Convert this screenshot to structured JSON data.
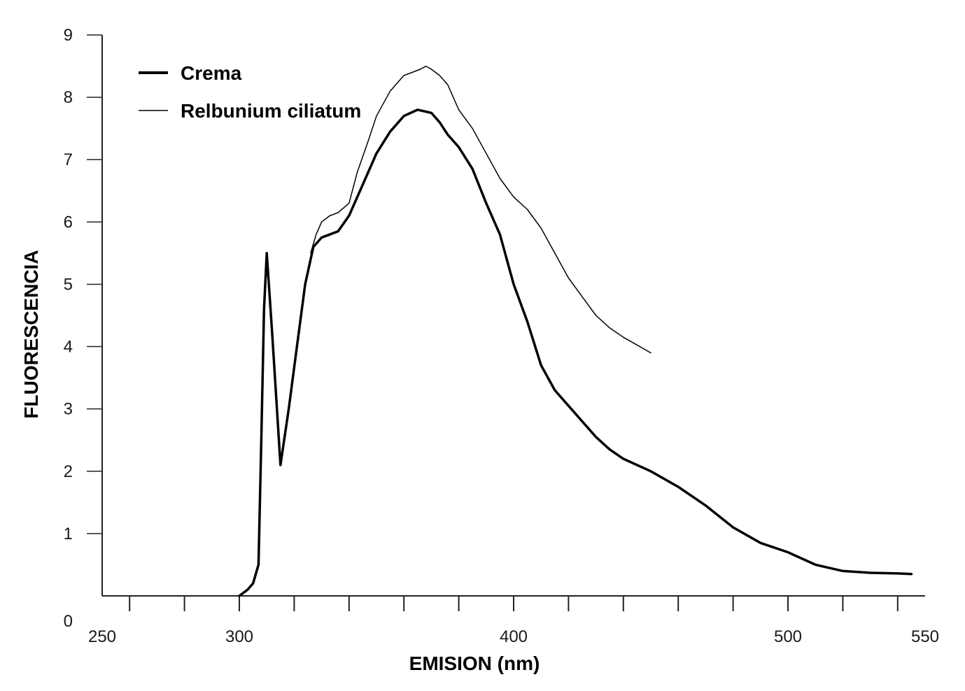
{
  "chart_data": {
    "type": "line",
    "title": "",
    "xlabel": "EMISION (nm)",
    "ylabel": "FLUORESCENCIA",
    "xlim": [
      250,
      550
    ],
    "ylim": [
      0,
      9
    ],
    "x_tick_labels": [
      "250",
      "300",
      "400",
      "500",
      "550"
    ],
    "x_tick_values": [
      250,
      300,
      400,
      500,
      550
    ],
    "x_minor_ticks": [
      260,
      280,
      300,
      320,
      340,
      360,
      380,
      400,
      420,
      440,
      460,
      480,
      500,
      520,
      540
    ],
    "y_tick_labels": [
      "0",
      "1",
      "2",
      "3",
      "4",
      "5",
      "6",
      "7",
      "8",
      "9"
    ],
    "y_tick_values": [
      0,
      1,
      2,
      3,
      4,
      5,
      6,
      7,
      8,
      9
    ],
    "grid": false,
    "legend_position": "top-left",
    "series": [
      {
        "name": "Crema",
        "color": "#000000",
        "style": "thick",
        "x": [
          300,
          303,
          305,
          307,
          308,
          309,
          310,
          312,
          315,
          318,
          321,
          324,
          327,
          330,
          333,
          336,
          340,
          345,
          350,
          355,
          360,
          365,
          370,
          373,
          376,
          380,
          385,
          390,
          395,
          400,
          405,
          410,
          415,
          420,
          425,
          430,
          435,
          440,
          450,
          460,
          470,
          480,
          490,
          500,
          505,
          510,
          520,
          530,
          540,
          545
        ],
        "y": [
          0,
          0.1,
          0.2,
          0.5,
          2.5,
          4.6,
          5.5,
          4.2,
          2.1,
          3.0,
          4.0,
          5.0,
          5.6,
          5.75,
          5.8,
          5.85,
          6.1,
          6.6,
          7.1,
          7.45,
          7.7,
          7.8,
          7.75,
          7.6,
          7.4,
          7.2,
          6.85,
          6.3,
          5.8,
          5.0,
          4.4,
          3.7,
          3.3,
          3.05,
          2.8,
          2.55,
          2.35,
          2.2,
          2.0,
          1.75,
          1.45,
          1.1,
          0.85,
          0.7,
          0.6,
          0.5,
          0.4,
          0.37,
          0.36,
          0.35
        ]
      },
      {
        "name": "Relbunium ciliatum",
        "color": "#000000",
        "style": "thin",
        "x": [
          326,
          328,
          330,
          333,
          336,
          340,
          343,
          347,
          350,
          355,
          360,
          363,
          366,
          368,
          370,
          373,
          376,
          380,
          385,
          390,
          395,
          400,
          405,
          410,
          415,
          420,
          425,
          430,
          435,
          440,
          450
        ],
        "y": [
          5.5,
          5.8,
          6.0,
          6.1,
          6.15,
          6.3,
          6.8,
          7.3,
          7.7,
          8.1,
          8.35,
          8.4,
          8.45,
          8.5,
          8.45,
          8.35,
          8.2,
          7.8,
          7.5,
          7.1,
          6.7,
          6.4,
          6.2,
          5.9,
          5.5,
          5.1,
          4.8,
          4.5,
          4.3,
          4.15,
          3.9
        ]
      }
    ]
  }
}
